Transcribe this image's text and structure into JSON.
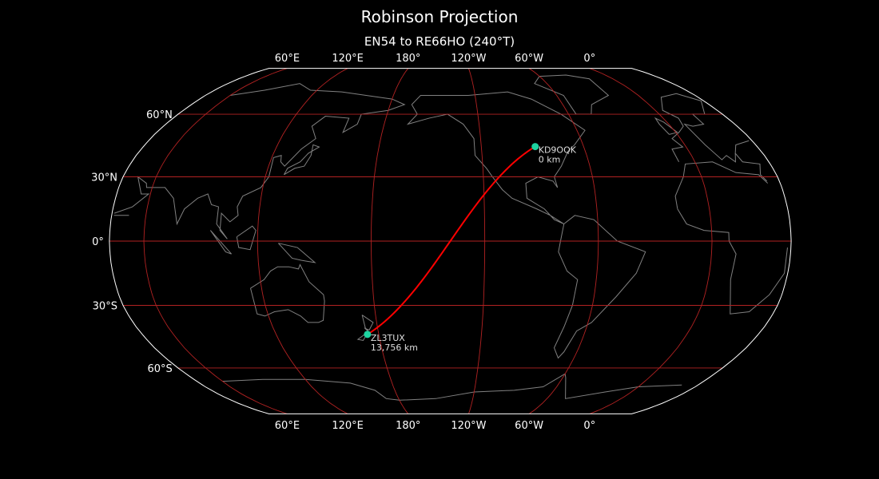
{
  "title": "Robinson Projection",
  "subtitle": "EN54 to RE66HO (240°T)",
  "projection": "Robinson",
  "central_longitude": -138.2,
  "colors": {
    "background": "#000000",
    "coastline": "#808080",
    "gridline": "#b22222",
    "path": "#ff0000",
    "station": "#1dd3a0",
    "outline": "#ffffff"
  },
  "meridians": [
    {
      "lon": 60,
      "label": "60°E"
    },
    {
      "lon": 120,
      "label": "120°E"
    },
    {
      "lon": 180,
      "label": "180°"
    },
    {
      "lon": -120,
      "label": "120°W"
    },
    {
      "lon": -60,
      "label": "60°W"
    },
    {
      "lon": 0,
      "label": "0°"
    }
  ],
  "parallels": [
    {
      "lat": 60,
      "label": "60°N"
    },
    {
      "lat": 30,
      "label": "30°N"
    },
    {
      "lat": 0,
      "label": "0°"
    },
    {
      "lat": -30,
      "label": "30°S"
    },
    {
      "lat": -60,
      "label": "60°S"
    }
  ],
  "stations": [
    {
      "call": "KD9OQK",
      "distance": "0 km",
      "lon": -88.4,
      "lat": 44.2
    },
    {
      "call": "ZL3TUX",
      "distance": "13,756 km",
      "lon": 173.4,
      "lat": -43.6
    }
  ]
}
